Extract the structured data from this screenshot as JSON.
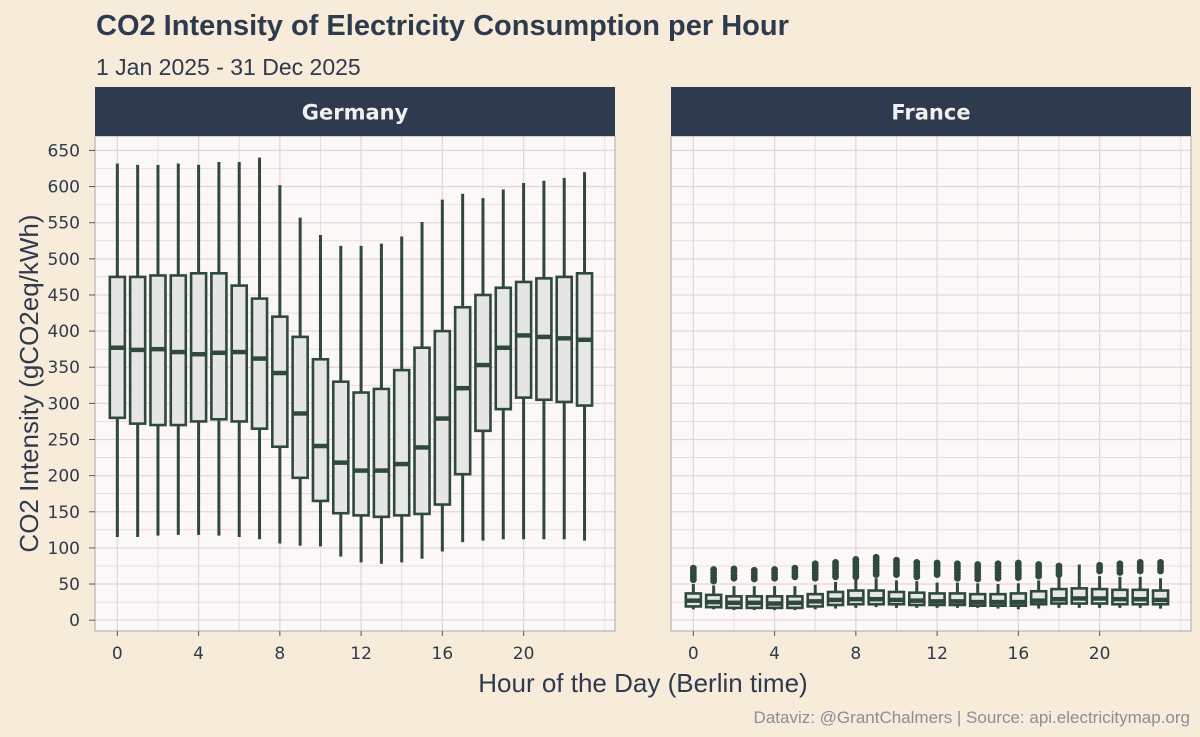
{
  "title": "CO2 Intensity of Electricity Consumption per Hour",
  "subtitle": "1 Jan 2025 - 31 Dec 2025",
  "caption": "Dataviz: @GrantChalmers | Source: api.electricitymap.org",
  "colors": {
    "background": "#f7ebda",
    "panel": "#fbf8f7",
    "strip": "#2e3b4e",
    "box_fill": "#e6e6e6",
    "box_line": "#2f4a3a",
    "grid": "#e6d5dc"
  },
  "chart_data": {
    "type": "boxplot",
    "xlabel": "Hour of the Day (Berlin time)",
    "ylabel": "CO2 Intensity (gCO2eq/kWh)",
    "ylim": [
      -15,
      670
    ],
    "yticks": [
      0,
      50,
      100,
      150,
      200,
      250,
      300,
      350,
      400,
      450,
      500,
      550,
      600,
      650
    ],
    "xticks": [
      0,
      4,
      8,
      12,
      16,
      20
    ],
    "xlim": [
      -1.1,
      24.5
    ],
    "hours": [
      0,
      1,
      2,
      3,
      4,
      5,
      6,
      7,
      8,
      9,
      10,
      11,
      12,
      13,
      14,
      15,
      16,
      17,
      18,
      19,
      20,
      21,
      22,
      23
    ],
    "panels": [
      {
        "name": "Germany",
        "min": [
          115,
          115,
          117,
          118,
          118,
          117,
          115,
          112,
          106,
          103,
          102,
          88,
          80,
          78,
          80,
          85,
          95,
          108,
          110,
          112,
          112,
          112,
          112,
          110
        ],
        "q1": [
          280,
          272,
          270,
          270,
          275,
          278,
          275,
          265,
          240,
          197,
          165,
          148,
          145,
          143,
          145,
          147,
          160,
          202,
          262,
          292,
          308,
          305,
          302,
          297
        ],
        "median": [
          377,
          374,
          375,
          371,
          368,
          370,
          371,
          362,
          342,
          286,
          241,
          218,
          207,
          207,
          216,
          239,
          279,
          321,
          353,
          377,
          394,
          392,
          390,
          388
        ],
        "q3": [
          475,
          475,
          477,
          477,
          480,
          480,
          463,
          445,
          420,
          392,
          361,
          330,
          315,
          320,
          346,
          377,
          400,
          433,
          450,
          460,
          468,
          473,
          475,
          480
        ],
        "max": [
          632,
          630,
          630,
          632,
          630,
          634,
          634,
          640,
          602,
          557,
          533,
          518,
          518,
          521,
          531,
          551,
          582,
          590,
          584,
          596,
          605,
          608,
          612,
          620
        ],
        "outliers": []
      },
      {
        "name": "France",
        "min": [
          15,
          15,
          14,
          14,
          14,
          14,
          15,
          16,
          17,
          18,
          17,
          17,
          17,
          17,
          17,
          16,
          15,
          16,
          17,
          17,
          17,
          17,
          17,
          16
        ],
        "q1": [
          19,
          18,
          17,
          17,
          17,
          17,
          19,
          21,
          22,
          22,
          22,
          21,
          21,
          21,
          20,
          20,
          20,
          22,
          23,
          23,
          23,
          22,
          22,
          22
        ],
        "median": [
          27,
          25,
          24,
          24,
          23,
          24,
          26,
          28,
          29,
          29,
          28,
          27,
          26,
          26,
          25,
          25,
          25,
          27,
          29,
          30,
          30,
          29,
          29,
          28
        ],
        "q3": [
          37,
          35,
          33,
          33,
          33,
          33,
          36,
          39,
          41,
          41,
          39,
          38,
          37,
          37,
          36,
          36,
          37,
          40,
          43,
          44,
          43,
          42,
          42,
          41
        ],
        "max": [
          50,
          48,
          47,
          47,
          47,
          47,
          49,
          53,
          57,
          58,
          55,
          54,
          52,
          52,
          51,
          50,
          51,
          55,
          60,
          77,
          61,
          60,
          60,
          58
        ],
        "outliers": [
          [
            72,
            68,
            64,
            60,
            56
          ],
          [
            70,
            66,
            62,
            58,
            54
          ],
          [
            71,
            67,
            62,
            58
          ],
          [
            69,
            65,
            61,
            57
          ],
          [
            70,
            66,
            62,
            58
          ],
          [
            72,
            68,
            64,
            60
          ],
          [
            78,
            74,
            70,
            66,
            62,
            58
          ],
          [
            80,
            76,
            72,
            68,
            64,
            60
          ],
          [
            84,
            80,
            76,
            72,
            68,
            64,
            60
          ],
          [
            87,
            83,
            79,
            75,
            71,
            67,
            63
          ],
          [
            83,
            79,
            75,
            71,
            67,
            63
          ],
          [
            80,
            76,
            72,
            68,
            64,
            60
          ],
          [
            79,
            75,
            71,
            67,
            63
          ],
          [
            78,
            74,
            70,
            66,
            62,
            58
          ],
          [
            77,
            73,
            69,
            65,
            61,
            57
          ],
          [
            78,
            74,
            70,
            66,
            62,
            58
          ],
          [
            79,
            75,
            71,
            67,
            63,
            59
          ],
          [
            77,
            73,
            69,
            65,
            61
          ],
          [
            75,
            71,
            67,
            63
          ],
          [],
          [
            76,
            72,
            68
          ],
          [
            78,
            74,
            70,
            66
          ],
          [
            80,
            76,
            72,
            68
          ],
          [
            80,
            76,
            72,
            68
          ]
        ]
      }
    ]
  }
}
